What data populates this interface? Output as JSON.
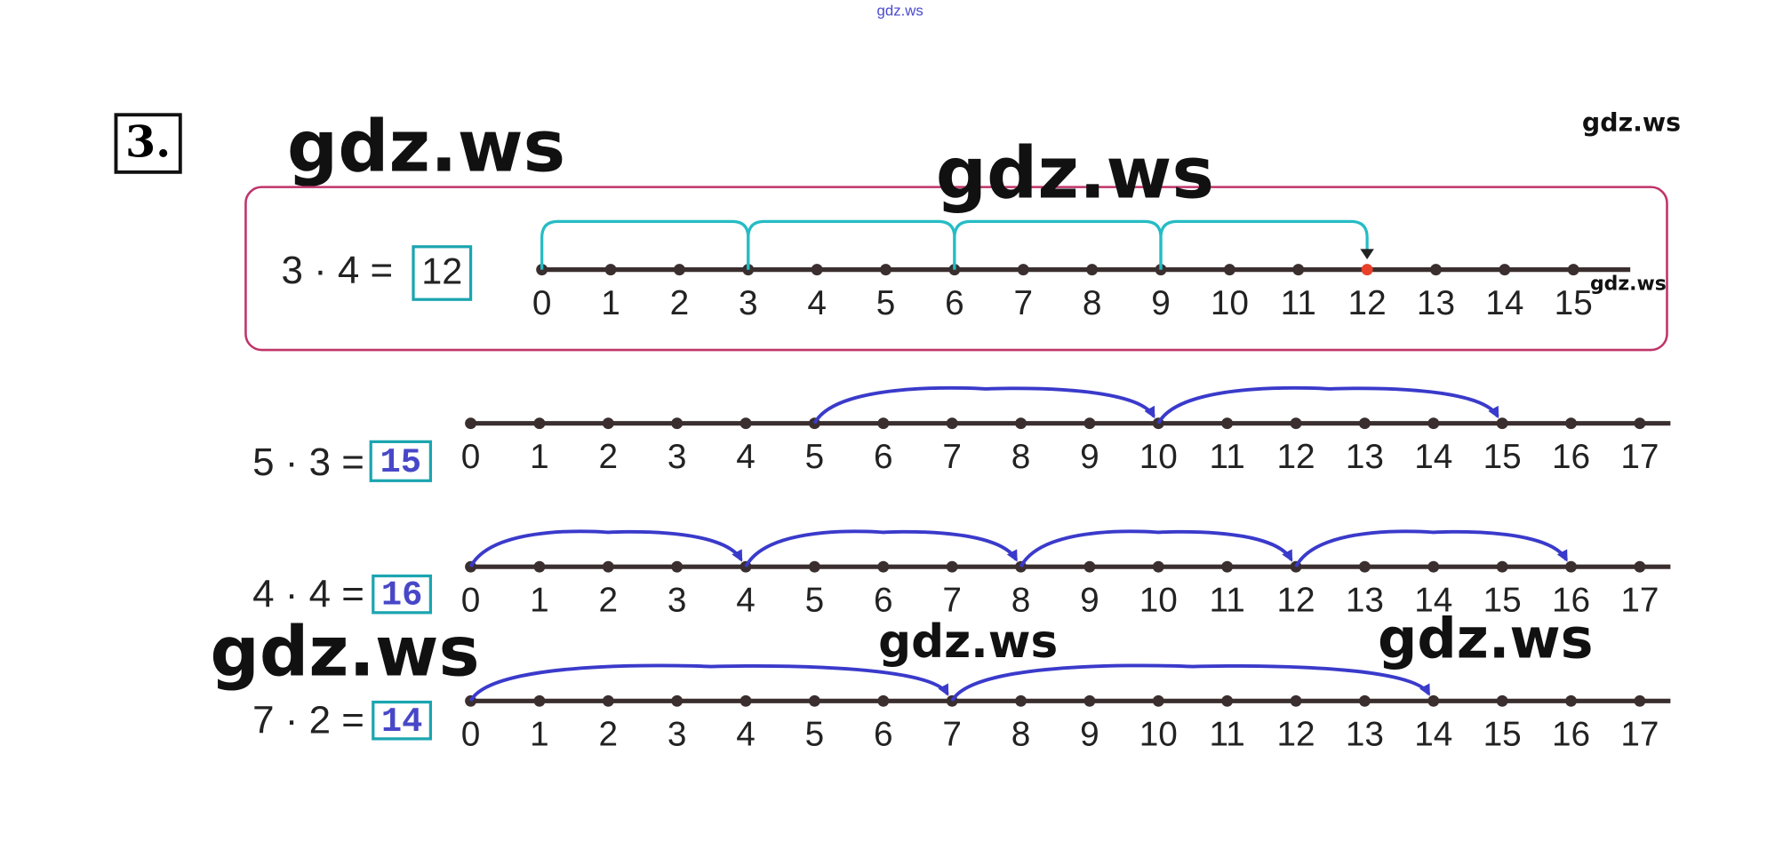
{
  "watermarks": [
    "gdz.ws",
    "gdz.ws",
    "gdz.ws",
    "gdz.ws",
    "gdz.ws",
    "gdz.ws",
    "gdz.ws",
    "gdz.ws"
  ],
  "exercise": {
    "number": "3."
  },
  "rows": [
    {
      "expression": "3 · 4 =",
      "answer": "12",
      "labels": [
        0,
        1,
        2,
        3,
        4,
        5,
        6,
        7,
        8,
        9,
        10,
        11,
        12,
        13,
        14,
        15
      ]
    },
    {
      "expression": "5 · 3 =",
      "answer": "15",
      "labels": [
        0,
        1,
        2,
        3,
        4,
        5,
        6,
        7,
        8,
        9,
        10,
        11,
        12,
        13,
        14,
        15,
        16,
        17
      ]
    },
    {
      "expression": "4 · 4 =",
      "answer": "16",
      "labels": [
        0,
        1,
        2,
        3,
        4,
        5,
        6,
        7,
        8,
        9,
        10,
        11,
        12,
        13,
        14,
        15,
        16,
        17
      ]
    },
    {
      "expression": "7 · 2 =",
      "answer": "14",
      "labels": [
        0,
        1,
        2,
        3,
        4,
        5,
        6,
        7,
        8,
        9,
        10,
        11,
        12,
        13,
        14,
        15,
        16,
        17
      ]
    }
  ]
}
